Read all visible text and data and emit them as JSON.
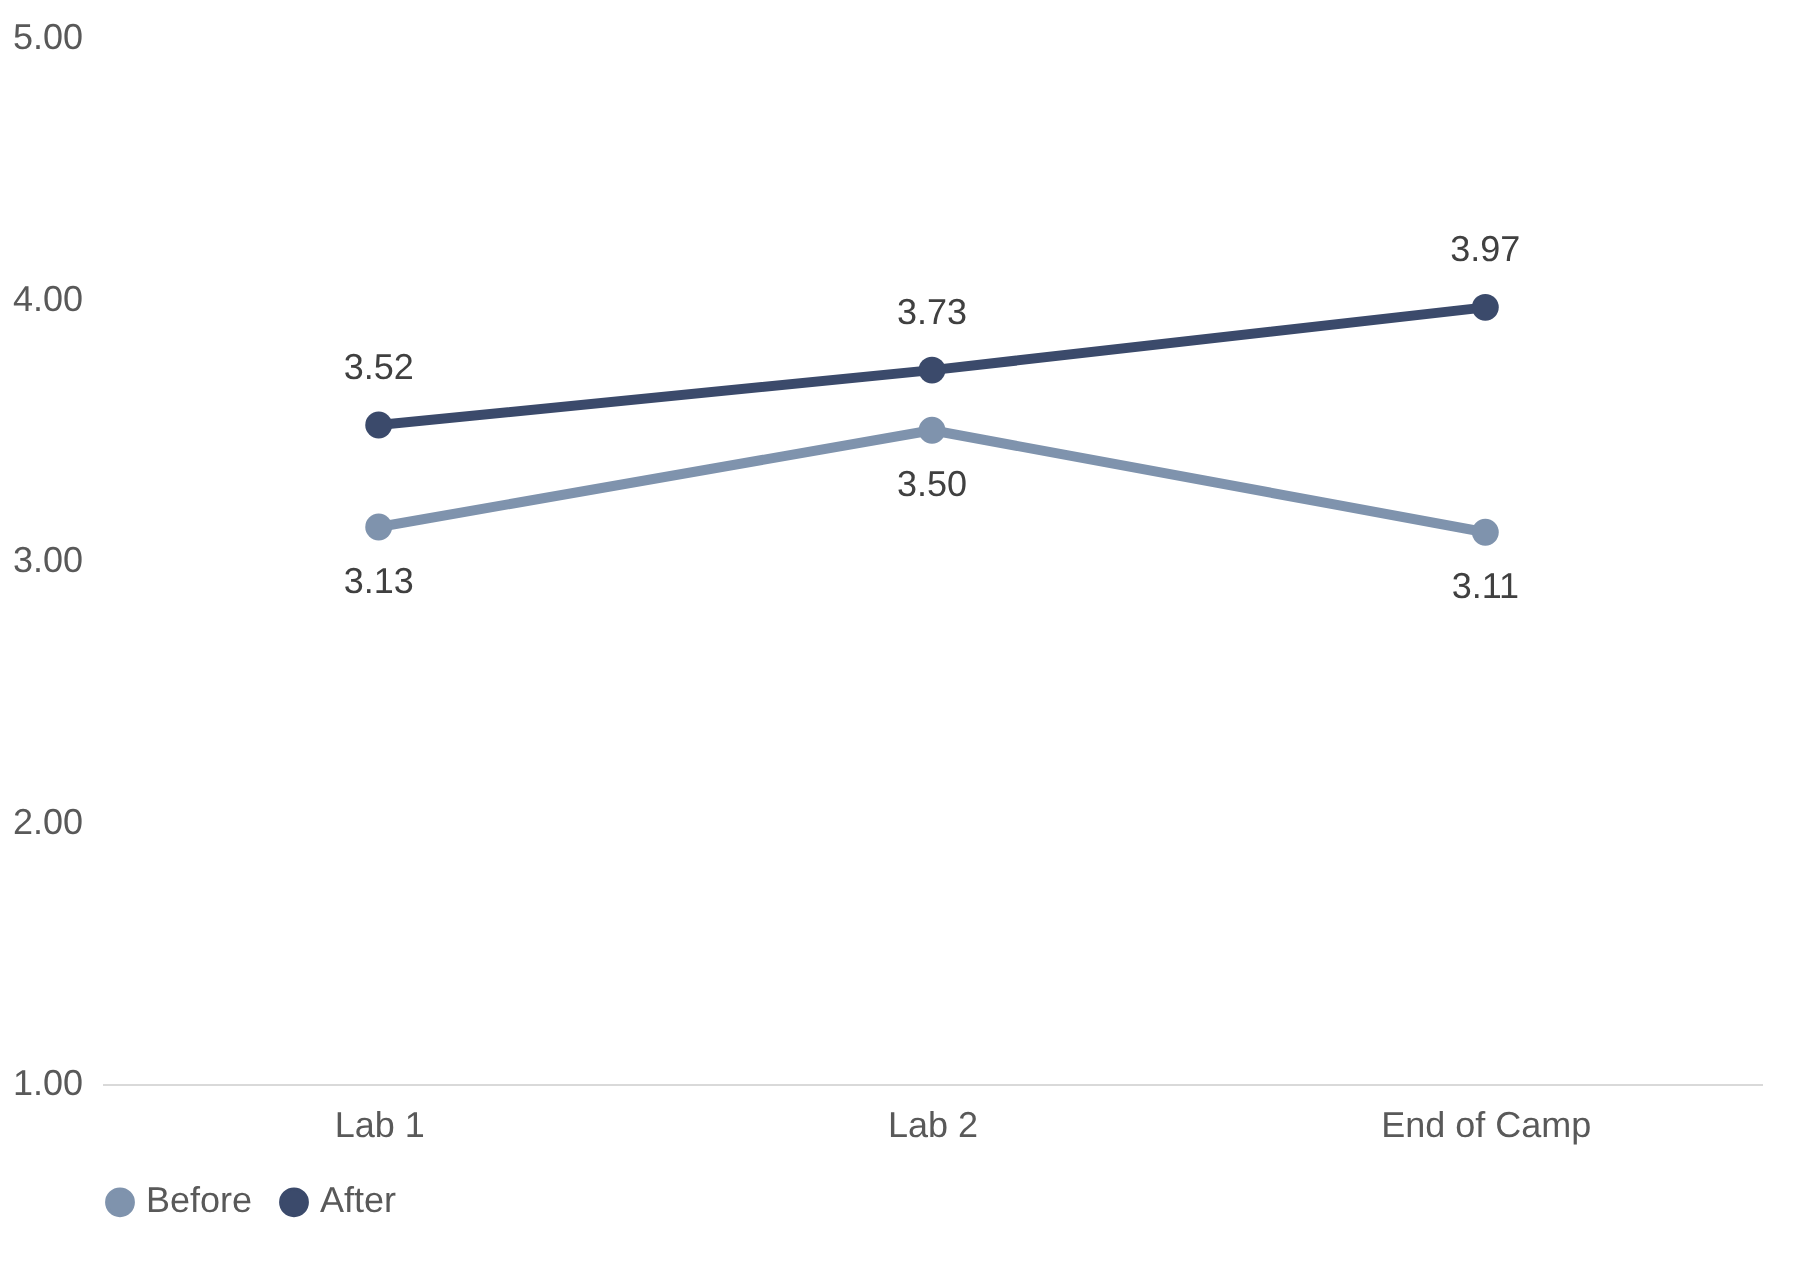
{
  "chart_data": {
    "type": "line",
    "categories": [
      "Lab 1",
      "Lab 2",
      "End of Camp"
    ],
    "series": [
      {
        "name": "Before",
        "color": "#7f93ad",
        "values": [
          3.13,
          3.5,
          3.11
        ],
        "value_labels": [
          "3.13",
          "3.50",
          "3.11"
        ]
      },
      {
        "name": "After",
        "color": "#3b4a6b",
        "values": [
          3.52,
          3.73,
          3.97
        ],
        "value_labels": [
          "3.52",
          "3.73",
          "3.97"
        ]
      }
    ],
    "ylim": [
      1,
      5
    ],
    "yticks": [
      {
        "value": 1,
        "label": "1.00"
      },
      {
        "value": 2,
        "label": "2.00"
      },
      {
        "value": 3,
        "label": "3.00"
      },
      {
        "value": 4,
        "label": "4.00"
      },
      {
        "value": 5,
        "label": "5.00"
      }
    ],
    "grid": false,
    "legend": "bottom",
    "marker": "circle",
    "line_style": "solid"
  }
}
